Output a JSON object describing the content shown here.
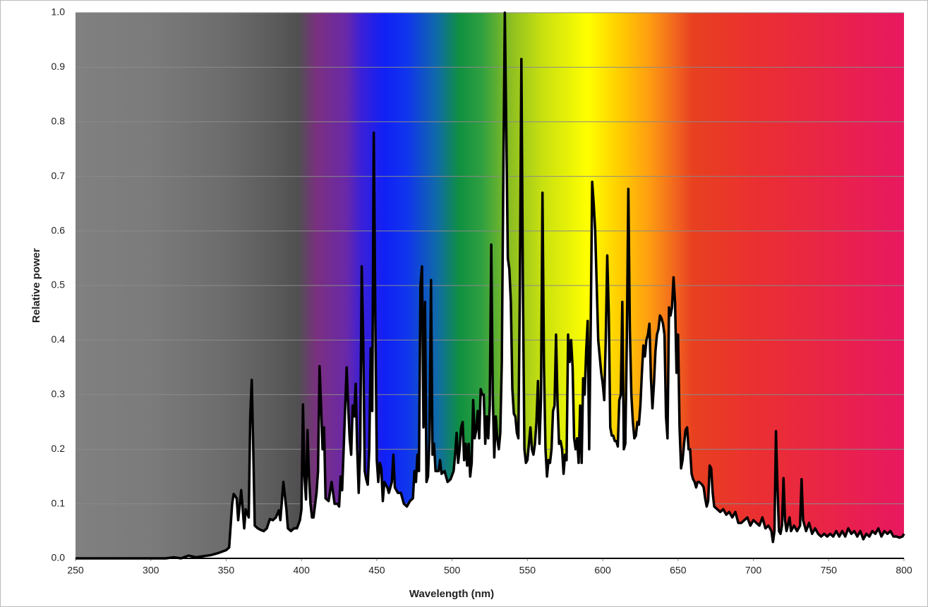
{
  "chart_data": {
    "type": "line",
    "xlabel": "Wavelength (nm)",
    "ylabel": "Relative power",
    "xlim": [
      250,
      800
    ],
    "ylim": [
      0,
      1
    ],
    "xticks": [
      250,
      300,
      350,
      400,
      450,
      500,
      550,
      600,
      650,
      700,
      750,
      800
    ],
    "yticks": [
      {
        "value": 0,
        "label": "0.0"
      },
      0.1,
      0.2,
      0.3,
      0.4,
      0.5,
      0.6,
      0.7,
      0.8,
      0.9,
      {
        "value": 1,
        "label": "1.0"
      }
    ],
    "grid": true,
    "series": [
      {
        "color": "#000000",
        "x": [
          250,
          310,
          315,
          320,
          325,
          330,
          335,
          340,
          345,
          350,
          352,
          354,
          355,
          357,
          358,
          360,
          362,
          363,
          365,
          366,
          367,
          368,
          369,
          371,
          373,
          375,
          377,
          379,
          381,
          383,
          385,
          386,
          388,
          390,
          391,
          393,
          395,
          397,
          399,
          400,
          401,
          402,
          403,
          404,
          405,
          406,
          407,
          408,
          410,
          411,
          412,
          413,
          414,
          415,
          416,
          418,
          420,
          422,
          424,
          425,
          426,
          427,
          428,
          430,
          431,
          432,
          433,
          434,
          435,
          436,
          437,
          438,
          439,
          440,
          441,
          442,
          443,
          444,
          445,
          446,
          447,
          448,
          449,
          450,
          451,
          452,
          453,
          454,
          455,
          457,
          458,
          460,
          461,
          462,
          464,
          466,
          468,
          470,
          472,
          474,
          475,
          476,
          477,
          478,
          479,
          480,
          481,
          482,
          483,
          484,
          485,
          486,
          487,
          488,
          489,
          491,
          492,
          493,
          495,
          497,
          499,
          501,
          502,
          503,
          504,
          505,
          506,
          507,
          508,
          509,
          510,
          511,
          512,
          513,
          514,
          515,
          516,
          517,
          518,
          519,
          520,
          521,
          522,
          523,
          524,
          525,
          526,
          527,
          528,
          529,
          530,
          531,
          532,
          533,
          534,
          535,
          536,
          537,
          538,
          539,
          540,
          541,
          542,
          543,
          544,
          545,
          546,
          547,
          548,
          549,
          550,
          551,
          552,
          553,
          554,
          555,
          556,
          557,
          558,
          559,
          560,
          561,
          562,
          563,
          564,
          565,
          566,
          567,
          568,
          569,
          570,
          571,
          572,
          573,
          574,
          575,
          576,
          577,
          578,
          579,
          580,
          581,
          582,
          583,
          584,
          585,
          586,
          587,
          588,
          589,
          590,
          591,
          592,
          593,
          594,
          595,
          596,
          597,
          598,
          599,
          600,
          601,
          602,
          603,
          604,
          605,
          606,
          607,
          608,
          609,
          610,
          611,
          612,
          613,
          614,
          615,
          616,
          617,
          618,
          619,
          620,
          621,
          622,
          623,
          624,
          625,
          626,
          627,
          628,
          629,
          630,
          631,
          632,
          633,
          634,
          635,
          636,
          637,
          638,
          639,
          640,
          641,
          642,
          643,
          644,
          645,
          646,
          647,
          648,
          649,
          650,
          651,
          652,
          653,
          654,
          655,
          656,
          657,
          658,
          659,
          660,
          661,
          662,
          663,
          664,
          666,
          667,
          668,
          669,
          670,
          671,
          672,
          673,
          674,
          676,
          678,
          680,
          682,
          684,
          686,
          688,
          690,
          692,
          694,
          696,
          698,
          700,
          702,
          704,
          706,
          708,
          710,
          712,
          713,
          714,
          715,
          716,
          717,
          718,
          719,
          720,
          721,
          722,
          724,
          725,
          727,
          729,
          731,
          732,
          733,
          735,
          737,
          739,
          741,
          743,
          745,
          747,
          749,
          751,
          753,
          755,
          757,
          759,
          761,
          763,
          765,
          767,
          769,
          771,
          773,
          775,
          777,
          779,
          781,
          783,
          785,
          787,
          789,
          791,
          793,
          795,
          797,
          799,
          800
        ],
        "values": [
          0,
          0,
          0.002,
          0,
          0.005,
          0.002,
          0.004,
          0.006,
          0.01,
          0.015,
          0.02,
          0.1,
          0.118,
          0.11,
          0.07,
          0.125,
          0.055,
          0.09,
          0.075,
          0.26,
          0.327,
          0.2,
          0.06,
          0.055,
          0.052,
          0.05,
          0.055,
          0.072,
          0.07,
          0.075,
          0.088,
          0.07,
          0.14,
          0.09,
          0.055,
          0.05,
          0.055,
          0.055,
          0.07,
          0.09,
          0.282,
          0.15,
          0.108,
          0.235,
          0.15,
          0.1,
          0.075,
          0.075,
          0.12,
          0.16,
          0.352,
          0.28,
          0.2,
          0.24,
          0.11,
          0.105,
          0.14,
          0.1,
          0.1,
          0.095,
          0.15,
          0.125,
          0.2,
          0.35,
          0.28,
          0.22,
          0.19,
          0.28,
          0.26,
          0.32,
          0.2,
          0.12,
          0.2,
          0.535,
          0.4,
          0.16,
          0.145,
          0.135,
          0.2,
          0.385,
          0.27,
          0.78,
          0.45,
          0.18,
          0.14,
          0.175,
          0.165,
          0.105,
          0.14,
          0.13,
          0.12,
          0.14,
          0.19,
          0.13,
          0.12,
          0.12,
          0.1,
          0.095,
          0.105,
          0.11,
          0.16,
          0.14,
          0.19,
          0.16,
          0.5,
          0.535,
          0.24,
          0.47,
          0.14,
          0.15,
          0.22,
          0.51,
          0.19,
          0.21,
          0.16,
          0.16,
          0.18,
          0.155,
          0.16,
          0.14,
          0.145,
          0.16,
          0.19,
          0.23,
          0.175,
          0.2,
          0.24,
          0.25,
          0.18,
          0.21,
          0.17,
          0.21,
          0.15,
          0.175,
          0.29,
          0.22,
          0.235,
          0.27,
          0.22,
          0.31,
          0.3,
          0.3,
          0.21,
          0.26,
          0.22,
          0.28,
          0.575,
          0.3,
          0.185,
          0.26,
          0.22,
          0.2,
          0.23,
          0.36,
          0.7,
          1.0,
          0.78,
          0.55,
          0.53,
          0.47,
          0.31,
          0.265,
          0.26,
          0.23,
          0.22,
          0.5,
          0.915,
          0.5,
          0.2,
          0.175,
          0.18,
          0.21,
          0.24,
          0.2,
          0.19,
          0.21,
          0.25,
          0.325,
          0.21,
          0.29,
          0.67,
          0.35,
          0.2,
          0.15,
          0.18,
          0.175,
          0.2,
          0.27,
          0.28,
          0.41,
          0.285,
          0.21,
          0.215,
          0.2,
          0.155,
          0.19,
          0.18,
          0.41,
          0.36,
          0.4,
          0.35,
          0.22,
          0.2,
          0.22,
          0.175,
          0.28,
          0.175,
          0.33,
          0.3,
          0.38,
          0.435,
          0.2,
          0.42,
          0.69,
          0.65,
          0.6,
          0.5,
          0.4,
          0.37,
          0.34,
          0.32,
          0.29,
          0.4,
          0.555,
          0.45,
          0.24,
          0.225,
          0.225,
          0.215,
          0.215,
          0.205,
          0.29,
          0.3,
          0.47,
          0.2,
          0.21,
          0.4,
          0.677,
          0.42,
          0.3,
          0.25,
          0.22,
          0.225,
          0.25,
          0.245,
          0.28,
          0.34,
          0.39,
          0.37,
          0.4,
          0.41,
          0.43,
          0.33,
          0.275,
          0.32,
          0.38,
          0.41,
          0.42,
          0.445,
          0.44,
          0.43,
          0.41,
          0.26,
          0.22,
          0.46,
          0.445,
          0.46,
          0.515,
          0.47,
          0.34,
          0.41,
          0.24,
          0.165,
          0.18,
          0.21,
          0.235,
          0.24,
          0.2,
          0.2,
          0.155,
          0.145,
          0.14,
          0.13,
          0.14,
          0.14,
          0.135,
          0.13,
          0.11,
          0.095,
          0.105,
          0.17,
          0.165,
          0.12,
          0.095,
          0.09,
          0.085,
          0.09,
          0.08,
          0.085,
          0.075,
          0.085,
          0.065,
          0.065,
          0.07,
          0.075,
          0.06,
          0.07,
          0.065,
          0.06,
          0.075,
          0.055,
          0.06,
          0.05,
          0.03,
          0.05,
          0.233,
          0.13,
          0.05,
          0.045,
          0.06,
          0.147,
          0.07,
          0.05,
          0.075,
          0.05,
          0.06,
          0.05,
          0.06,
          0.145,
          0.07,
          0.05,
          0.065,
          0.045,
          0.055,
          0.045,
          0.04,
          0.045,
          0.04,
          0.045,
          0.04,
          0.05,
          0.04,
          0.05,
          0.04,
          0.055,
          0.045,
          0.05,
          0.04,
          0.05,
          0.035,
          0.045,
          0.04,
          0.05,
          0.045,
          0.055,
          0.04,
          0.05,
          0.045,
          0.05,
          0.04,
          0.04,
          0.038,
          0.04,
          0.045
        ]
      }
    ]
  }
}
